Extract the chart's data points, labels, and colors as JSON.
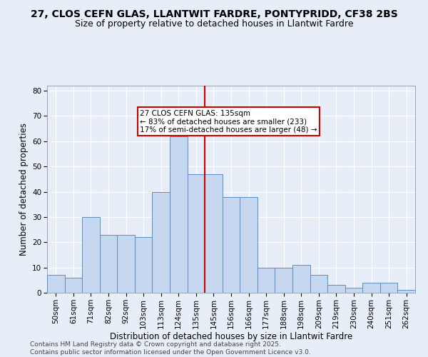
{
  "title_line1": "27, CLOS CEFN GLAS, LLANTWIT FARDRE, PONTYPRIDD, CF38 2BS",
  "title_line2": "Size of property relative to detached houses in Llantwit Fardre",
  "xlabel": "Distribution of detached houses by size in Llantwit Fardre",
  "ylabel": "Number of detached properties",
  "categories": [
    "50sqm",
    "61sqm",
    "71sqm",
    "82sqm",
    "92sqm",
    "103sqm",
    "113sqm",
    "124sqm",
    "135sqm",
    "145sqm",
    "156sqm",
    "166sqm",
    "177sqm",
    "188sqm",
    "198sqm",
    "209sqm",
    "219sqm",
    "230sqm",
    "240sqm",
    "251sqm",
    "262sqm"
  ],
  "values": [
    7,
    6,
    30,
    23,
    23,
    22,
    40,
    62,
    47,
    47,
    38,
    38,
    10,
    10,
    11,
    7,
    3,
    2,
    4,
    4,
    1
  ],
  "bar_color": "#c5d8f0",
  "bar_edge_color": "#5b8dc8",
  "highlight_line_index": 8,
  "annotation_text": "27 CLOS CEFN GLAS: 135sqm\n← 83% of detached houses are smaller (233)\n17% of semi-detached houses are larger (48) →",
  "annotation_box_facecolor": "#ffffff",
  "annotation_box_edgecolor": "#cc0000",
  "vline_color": "#cc0000",
  "ylim": [
    0,
    82
  ],
  "yticks": [
    0,
    10,
    20,
    30,
    40,
    50,
    60,
    70,
    80
  ],
  "background_color": "#e8eef7",
  "grid_color": "#ffffff",
  "footer_text": "Contains HM Land Registry data © Crown copyright and database right 2025.\nContains public sector information licensed under the Open Government Licence v3.0.",
  "title_fontsize": 10,
  "subtitle_fontsize": 9,
  "axis_label_fontsize": 8.5,
  "tick_fontsize": 7.5,
  "annotation_fontsize": 7.5,
  "footer_fontsize": 6.5
}
